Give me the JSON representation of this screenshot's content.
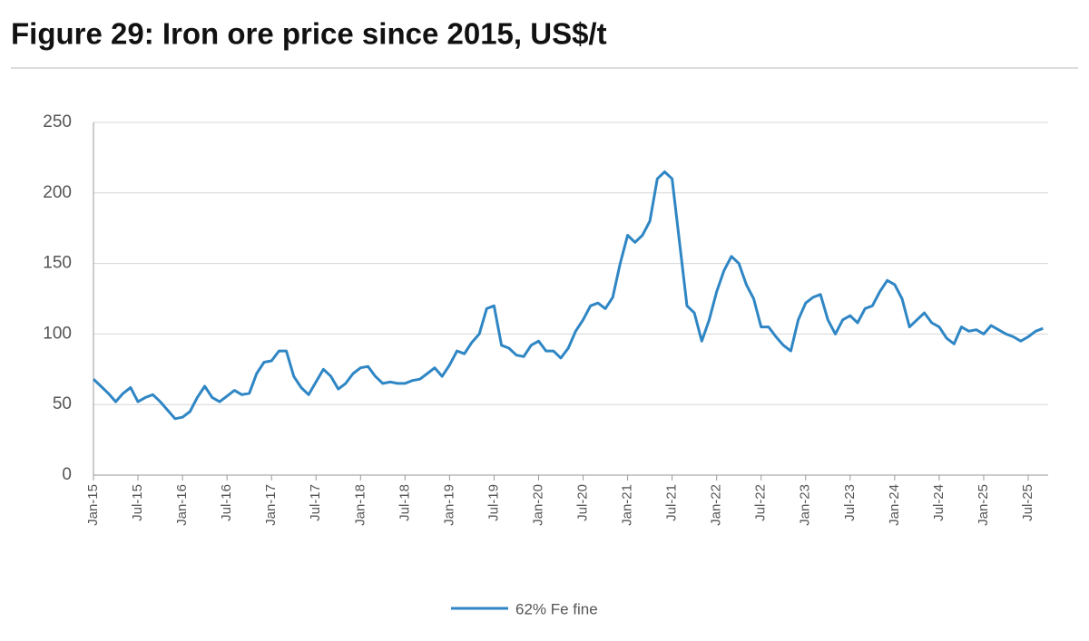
{
  "chart_data": {
    "type": "line",
    "title": "Figure 29: Iron ore price since 2015, US$/t",
    "categories": [
      "Jan-15",
      null,
      null,
      null,
      null,
      null,
      "Jul-15",
      null,
      null,
      null,
      null,
      null,
      "Jan-16",
      null,
      null,
      null,
      null,
      null,
      "Jul-16",
      null,
      null,
      null,
      null,
      null,
      "Jan-17",
      null,
      null,
      null,
      null,
      null,
      "Jul-17",
      null,
      null,
      null,
      null,
      null,
      "Jan-18",
      null,
      null,
      null,
      null,
      null,
      "Jul-18",
      null,
      null,
      null,
      null,
      null,
      "Jan-19",
      null,
      null,
      null,
      null,
      null,
      "Jul-19",
      null,
      null,
      null,
      null,
      null,
      "Jan-20",
      null,
      null,
      null,
      null,
      null,
      "Jul-20",
      null,
      null,
      null,
      null,
      null,
      "Jan-21",
      null,
      null,
      null,
      null,
      null,
      "Jul-21",
      null,
      null,
      null,
      null,
      null,
      "Jan-22",
      null,
      null,
      null,
      null,
      null,
      "Jul-22",
      null,
      null,
      null,
      null,
      null,
      "Jan-23",
      null,
      null,
      null,
      null,
      null,
      "Jul-23",
      null,
      null,
      null,
      null,
      null,
      "Jan-24",
      null,
      null,
      null,
      null,
      null,
      "Jul-24",
      null,
      null,
      null,
      null,
      null,
      "Jan-25",
      null,
      null,
      null,
      null,
      null,
      "Jul-25",
      null,
      null
    ],
    "series": [
      {
        "name": "62% Fe fine",
        "color": "#2f86c4",
        "values": [
          68,
          63,
          58,
          52,
          58,
          62,
          52,
          55,
          57,
          52,
          46,
          40,
          41,
          45,
          55,
          63,
          55,
          52,
          56,
          60,
          57,
          58,
          72,
          80,
          81,
          88,
          88,
          70,
          62,
          57,
          66,
          75,
          70,
          61,
          65,
          72,
          76,
          77,
          70,
          65,
          66,
          65,
          65,
          67,
          68,
          72,
          76,
          70,
          78,
          88,
          86,
          94,
          100,
          118,
          120,
          92,
          90,
          85,
          84,
          92,
          95,
          88,
          88,
          83,
          90,
          102,
          110,
          120,
          122,
          118,
          126,
          150,
          170,
          165,
          170,
          180,
          210,
          215,
          210,
          165,
          120,
          115,
          95,
          110,
          130,
          145,
          155,
          150,
          135,
          125,
          105,
          105,
          98,
          92,
          88,
          110,
          122,
          126,
          128,
          110,
          100,
          110,
          113,
          108,
          118,
          120,
          130,
          138,
          135,
          125,
          105,
          110,
          115,
          108,
          105,
          97,
          93,
          105,
          102,
          103,
          100,
          106,
          103,
          100,
          98,
          95,
          98,
          102,
          104
        ]
      }
    ],
    "ylim": [
      0,
      250
    ],
    "yticks": [
      0,
      50,
      100,
      150,
      200,
      250
    ],
    "grid": true,
    "legend": "bottom"
  }
}
